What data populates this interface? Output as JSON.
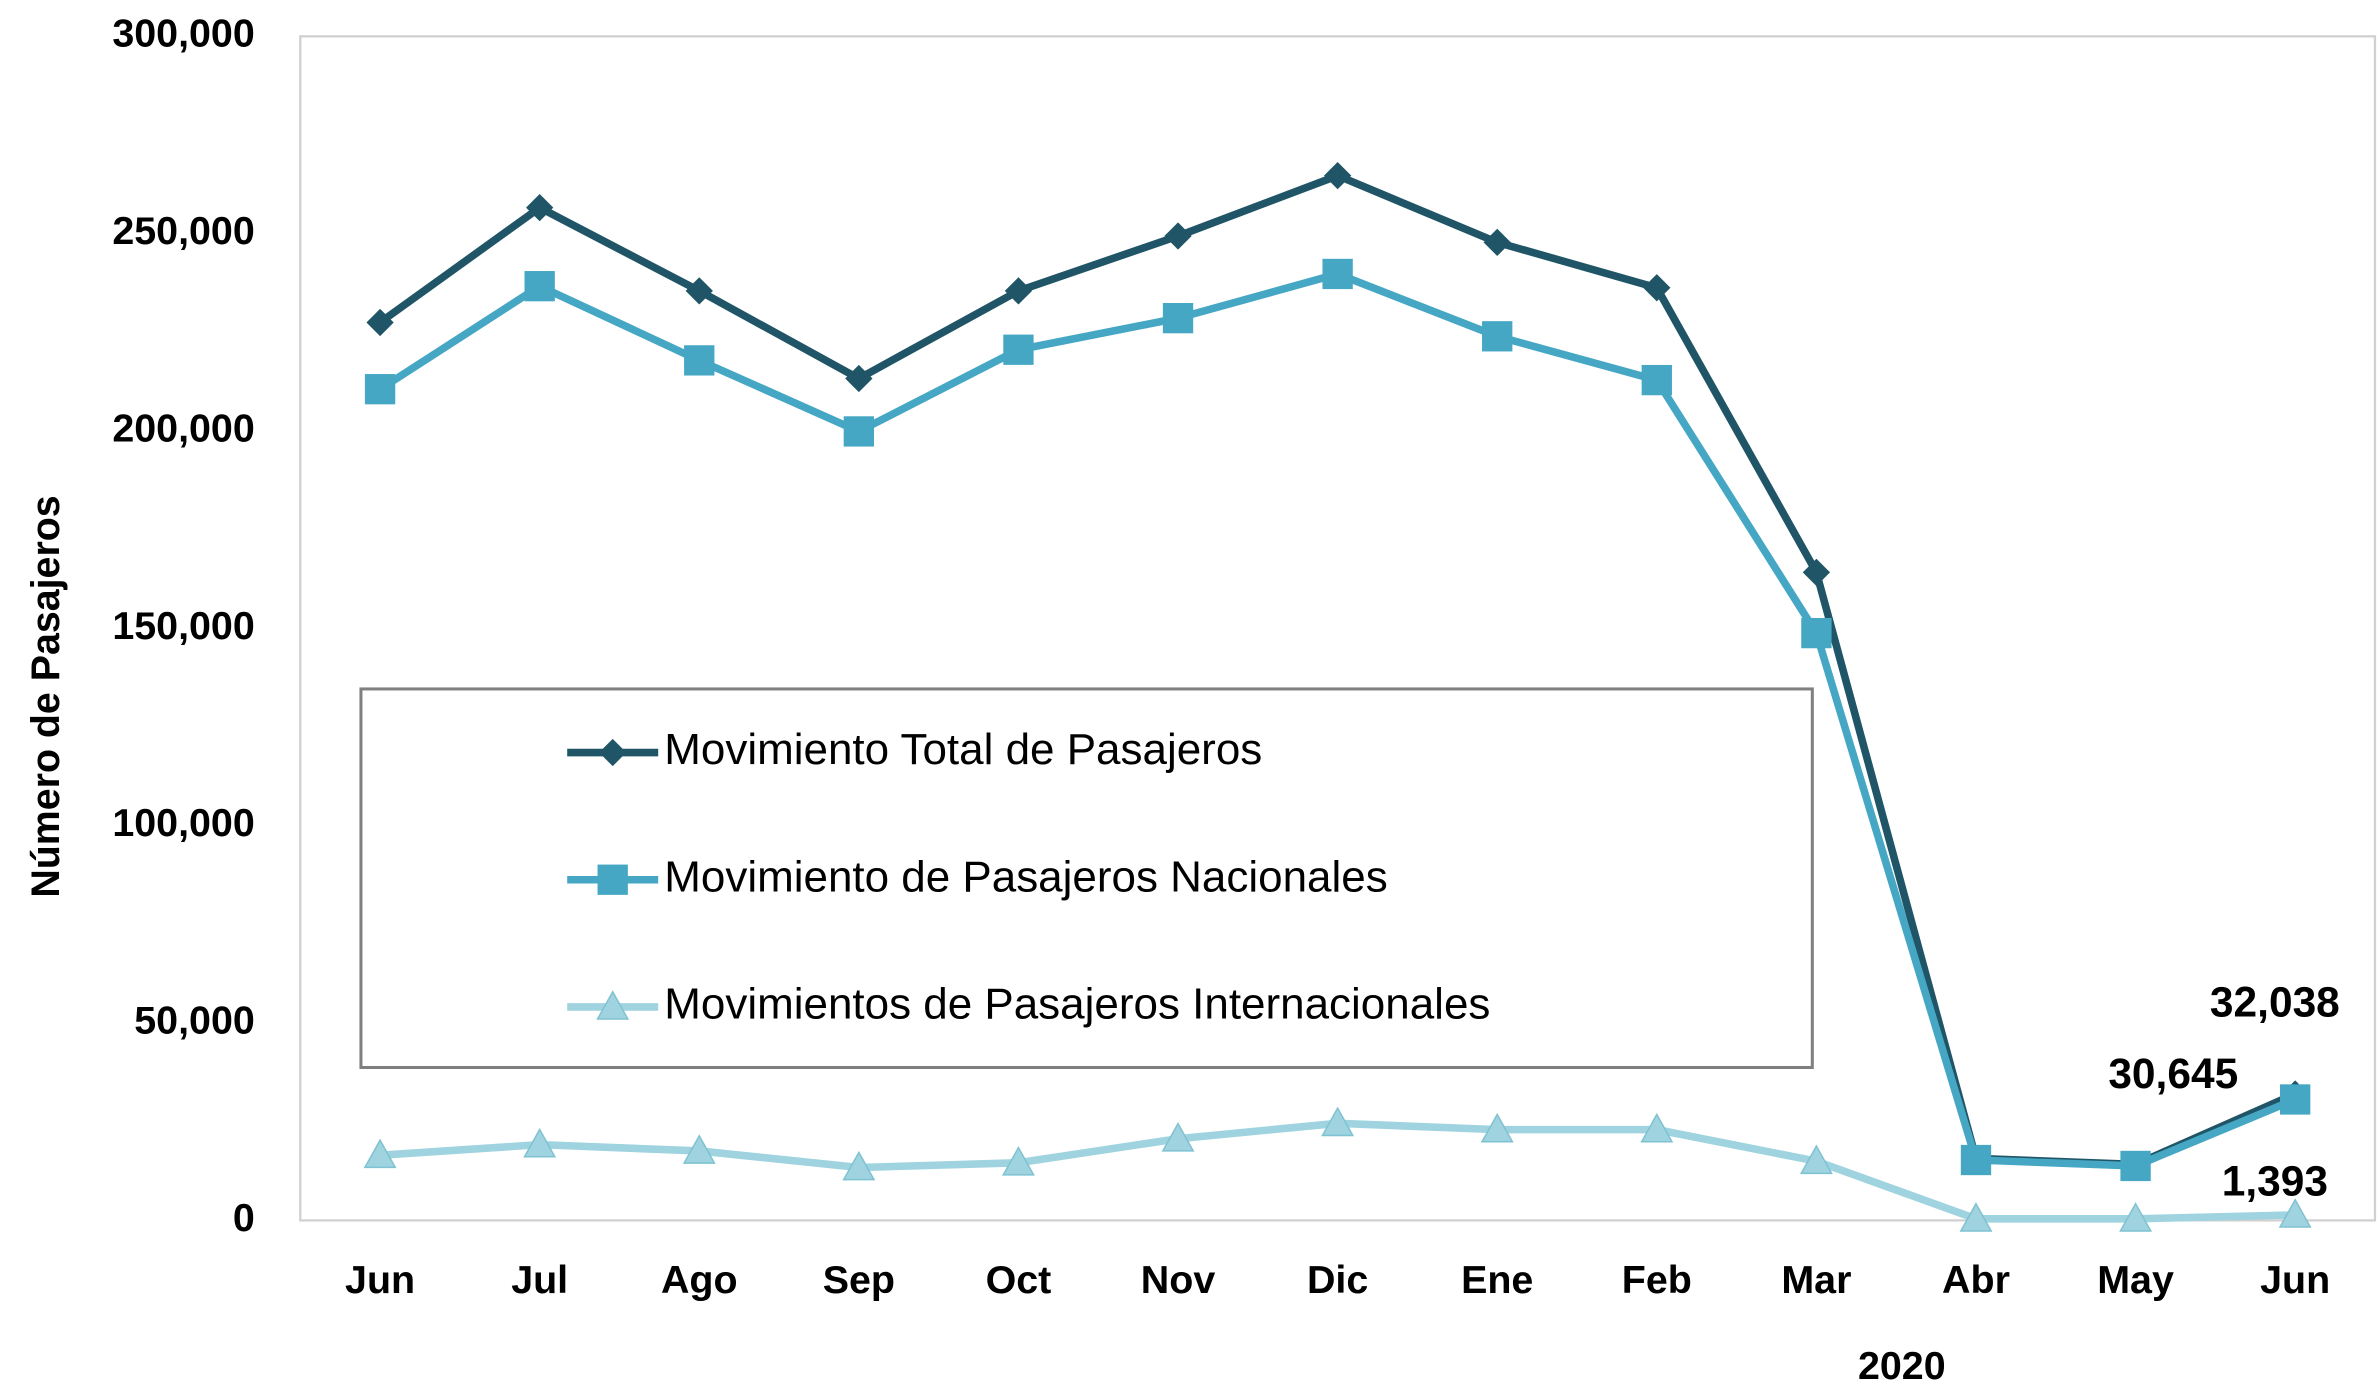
{
  "chart_data": {
    "type": "line",
    "y_label": "Número de Pasajeros",
    "categories": [
      "Jun",
      "Jul",
      "Ago",
      "Sep",
      "Oct",
      "Nov",
      "Dic",
      "Ene",
      "Feb",
      "Mar",
      "Abr",
      "May",
      "Jun"
    ],
    "x_group_label": "2020",
    "ylim": [
      0,
      300000
    ],
    "yticks": [
      {
        "value": 0,
        "label": "0"
      },
      {
        "value": 50000,
        "label": "50,000"
      },
      {
        "value": 100000,
        "label": "100,000"
      },
      {
        "value": 150000,
        "label": "150,000"
      },
      {
        "value": 200000,
        "label": "200,000"
      },
      {
        "value": 250000,
        "label": "250,000"
      },
      {
        "value": 300000,
        "label": "300,000"
      }
    ],
    "grid": false,
    "legend": "left",
    "series": [
      {
        "name": "Movimiento Total de Pasajeros",
        "color": "#1f5566",
        "marker": "diamond",
        "values": [
          227500,
          256600,
          235500,
          213300,
          235500,
          249400,
          264700,
          247800,
          236300,
          164200,
          15700,
          14200,
          32038
        ],
        "value_labels": [
          null,
          null,
          null,
          null,
          null,
          null,
          null,
          null,
          null,
          null,
          null,
          null,
          "32,038"
        ]
      },
      {
        "name": "Movimiento de Pasajeros Nacionales",
        "color": "#45a7c4",
        "marker": "square",
        "values": [
          210600,
          236700,
          217900,
          199900,
          220600,
          228600,
          239800,
          224000,
          212900,
          148800,
          15300,
          13800,
          30645
        ],
        "value_labels": [
          null,
          null,
          null,
          null,
          null,
          null,
          null,
          null,
          null,
          null,
          null,
          null,
          "30,645"
        ]
      },
      {
        "name": "Movimientos de Pasajeros Internacionales",
        "color": "#9fd3df",
        "marker": "triangle",
        "values": [
          16500,
          19200,
          17600,
          13400,
          14600,
          20700,
          24600,
          23000,
          23000,
          15000,
          400,
          400,
          1393
        ],
        "value_labels": [
          null,
          null,
          null,
          null,
          null,
          null,
          null,
          null,
          null,
          null,
          null,
          null,
          "1,393"
        ]
      }
    ]
  }
}
